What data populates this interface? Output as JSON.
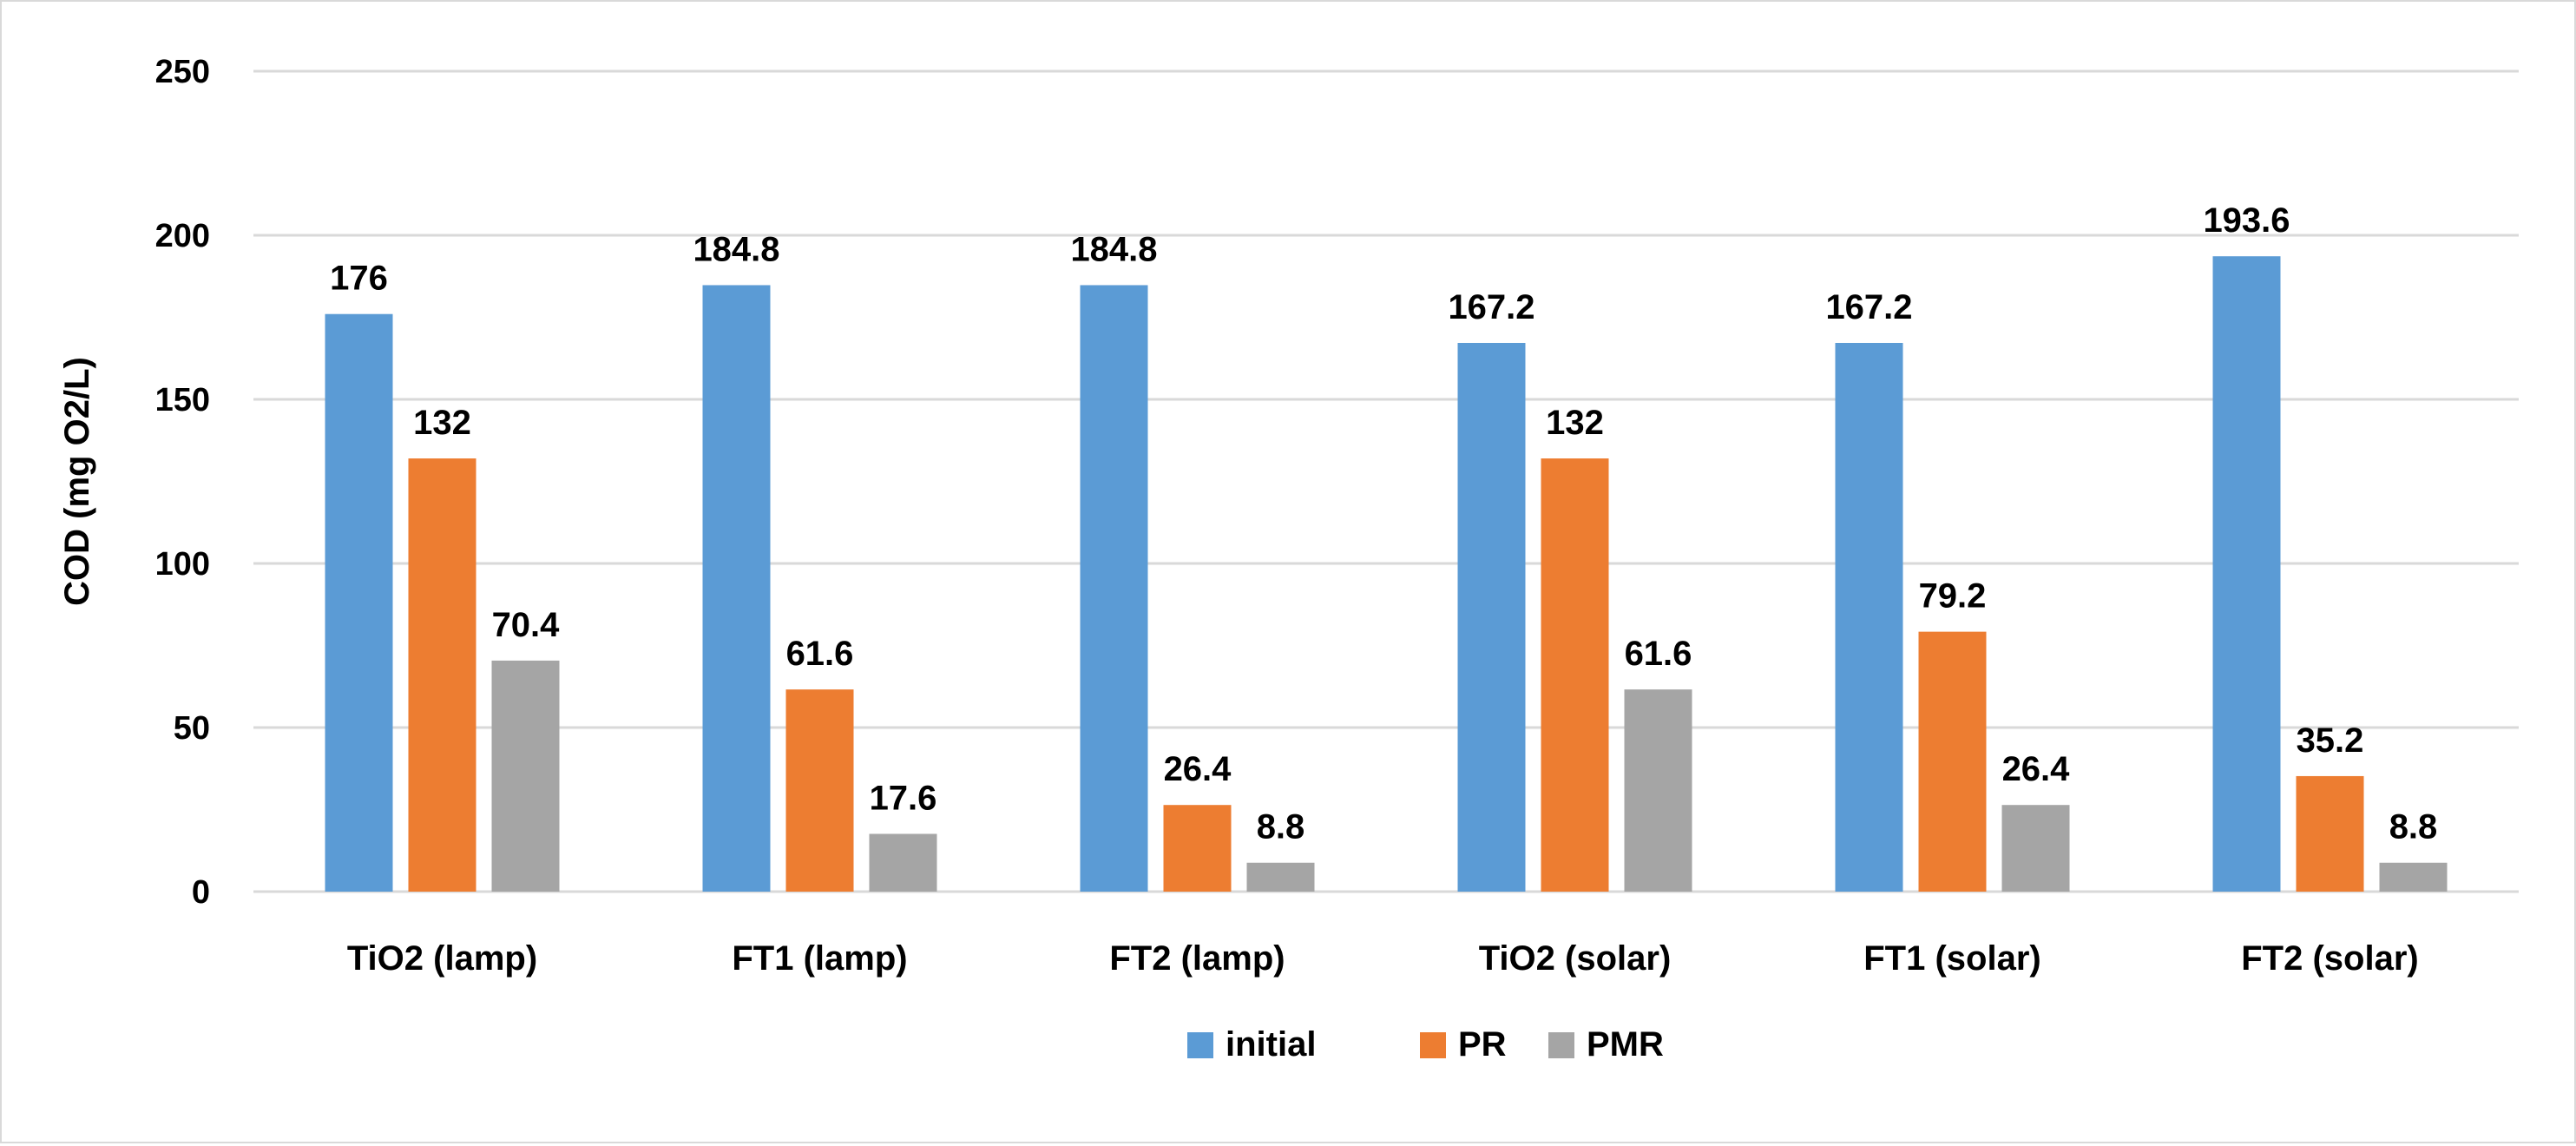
{
  "chart_data": {
    "type": "bar",
    "title": "",
    "xlabel": "",
    "ylabel": "COD (mg O2/L)",
    "ylim": [
      0,
      250
    ],
    "yticks": [
      0,
      50,
      100,
      150,
      200,
      250
    ],
    "grid": true,
    "legend_position": "bottom",
    "categories": [
      "TiO2 (lamp)",
      "FT1 (lamp)",
      "FT2 (lamp)",
      "TiO2 (solar)",
      "FT1 (solar)",
      "FT2 (solar)"
    ],
    "series": [
      {
        "name": "initial",
        "color": "#5B9BD5",
        "values": [
          176,
          184.8,
          184.8,
          167.2,
          167.2,
          193.6
        ]
      },
      {
        "name": "PR",
        "color": "#ED7D31",
        "values": [
          132,
          61.6,
          26.4,
          132,
          79.2,
          35.2
        ]
      },
      {
        "name": "PMR",
        "color": "#A5A5A5",
        "values": [
          70.4,
          17.6,
          8.8,
          61.6,
          26.4,
          8.8
        ]
      }
    ]
  }
}
